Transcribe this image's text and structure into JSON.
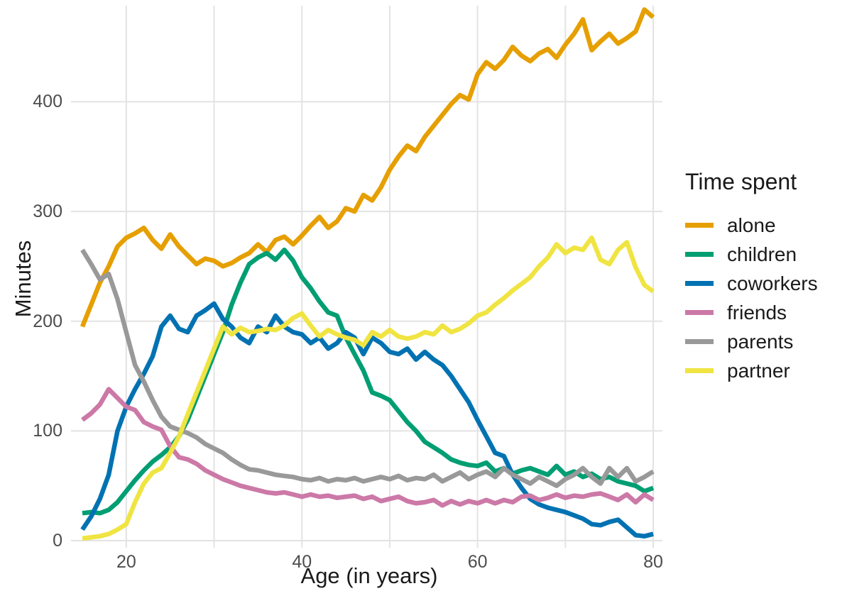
{
  "chart_data": {
    "type": "line",
    "title": "",
    "xlabel": "Age (in years)",
    "ylabel": "Minutes",
    "legend_title": "Time spent",
    "legend_position": "right",
    "grid": true,
    "x_ticks": [
      20,
      40,
      60,
      80
    ],
    "x_gridlines": [
      20,
      30,
      40,
      50,
      60,
      70,
      80
    ],
    "y_ticks": [
      0,
      100,
      200,
      300,
      400
    ],
    "xlim": [
      13.7,
      81.2
    ],
    "ylim": [
      -5,
      493
    ],
    "x": [
      15,
      16,
      17,
      18,
      19,
      20,
      21,
      22,
      23,
      24,
      25,
      26,
      27,
      28,
      29,
      30,
      31,
      32,
      33,
      34,
      35,
      36,
      37,
      38,
      39,
      40,
      41,
      42,
      43,
      44,
      45,
      46,
      47,
      48,
      49,
      50,
      51,
      52,
      53,
      54,
      55,
      56,
      57,
      58,
      59,
      60,
      61,
      62,
      63,
      64,
      65,
      66,
      67,
      68,
      69,
      70,
      71,
      72,
      73,
      74,
      75,
      76,
      77,
      78,
      79,
      80
    ],
    "series": [
      {
        "name": "alone",
        "color": "#E69F00",
        "values": [
          195,
          215,
          235,
          250,
          268,
          276,
          280,
          285,
          274,
          266,
          279,
          268,
          260,
          252,
          257,
          255,
          250,
          253,
          258,
          262,
          270,
          263,
          274,
          277,
          270,
          278,
          287,
          295,
          285,
          291,
          303,
          300,
          315,
          310,
          322,
          338,
          350,
          360,
          355,
          368,
          378,
          388,
          398,
          406,
          402,
          425,
          436,
          430,
          438,
          450,
          442,
          437,
          444,
          448,
          440,
          452,
          462,
          475,
          447,
          455,
          462,
          453,
          458,
          464,
          484,
          477
        ]
      },
      {
        "name": "children",
        "color": "#009E73",
        "values": [
          25,
          26,
          25,
          28,
          35,
          45,
          55,
          64,
          72,
          78,
          85,
          95,
          110,
          130,
          150,
          170,
          190,
          215,
          235,
          252,
          258,
          262,
          256,
          265,
          255,
          240,
          230,
          218,
          208,
          205,
          185,
          170,
          155,
          135,
          132,
          128,
          118,
          108,
          100,
          90,
          85,
          80,
          74,
          71,
          69,
          68,
          71,
          63,
          66,
          61,
          64,
          66,
          63,
          60,
          68,
          60,
          63,
          58,
          61,
          56,
          58,
          54,
          52,
          50,
          45,
          48
        ]
      },
      {
        "name": "coworkers",
        "color": "#0072B2",
        "values": [
          10,
          22,
          38,
          60,
          100,
          122,
          138,
          152,
          168,
          195,
          205,
          193,
          190,
          205,
          210,
          216,
          202,
          195,
          185,
          180,
          195,
          190,
          205,
          195,
          190,
          188,
          180,
          185,
          175,
          180,
          190,
          185,
          170,
          185,
          180,
          172,
          170,
          175,
          165,
          172,
          165,
          160,
          150,
          138,
          126,
          110,
          95,
          80,
          77,
          60,
          48,
          38,
          33,
          30,
          28,
          26,
          23,
          20,
          15,
          14,
          17,
          19,
          12,
          5,
          4,
          6
        ]
      },
      {
        "name": "friends",
        "color": "#CC79A7",
        "values": [
          110,
          116,
          124,
          138,
          130,
          122,
          119,
          108,
          104,
          101,
          86,
          76,
          74,
          70,
          64,
          60,
          56,
          53,
          50,
          48,
          46,
          44,
          43,
          44,
          42,
          40,
          42,
          40,
          41,
          39,
          40,
          41,
          38,
          40,
          36,
          38,
          40,
          36,
          34,
          35,
          37,
          32,
          36,
          33,
          36,
          34,
          37,
          34,
          37,
          35,
          40,
          41,
          37,
          39,
          42,
          39,
          41,
          40,
          42,
          43,
          40,
          37,
          42,
          35,
          42,
          37
        ]
      },
      {
        "name": "parents",
        "color": "#999999",
        "values": [
          265,
          252,
          238,
          243,
          220,
          190,
          160,
          145,
          128,
          113,
          104,
          101,
          98,
          94,
          88,
          84,
          80,
          74,
          69,
          65,
          64,
          62,
          60,
          59,
          58,
          56,
          55,
          57,
          54,
          56,
          55,
          57,
          54,
          56,
          58,
          56,
          59,
          55,
          57,
          56,
          60,
          54,
          58,
          62,
          56,
          60,
          63,
          58,
          66,
          60,
          56,
          52,
          58,
          54,
          50,
          56,
          60,
          66,
          58,
          52,
          66,
          58,
          66,
          54,
          58,
          63
        ]
      },
      {
        "name": "partner",
        "color": "#F0E442",
        "values": [
          2,
          3,
          4,
          6,
          10,
          15,
          35,
          52,
          62,
          66,
          80,
          95,
          115,
          135,
          155,
          175,
          195,
          188,
          194,
          190,
          191,
          193,
          192,
          196,
          203,
          207,
          196,
          186,
          192,
          188,
          185,
          183,
          178,
          190,
          186,
          192,
          186,
          184,
          186,
          190,
          188,
          196,
          190,
          193,
          198,
          205,
          208,
          215,
          221,
          228,
          234,
          240,
          250,
          258,
          270,
          262,
          267,
          265,
          276,
          256,
          252,
          265,
          272,
          249,
          233,
          227
        ]
      }
    ]
  },
  "colors": {
    "background": "#FFFFFF",
    "gridline": "#E3E3E3",
    "tick_label": "#4D4D4D",
    "text": "#1A1A1A"
  }
}
